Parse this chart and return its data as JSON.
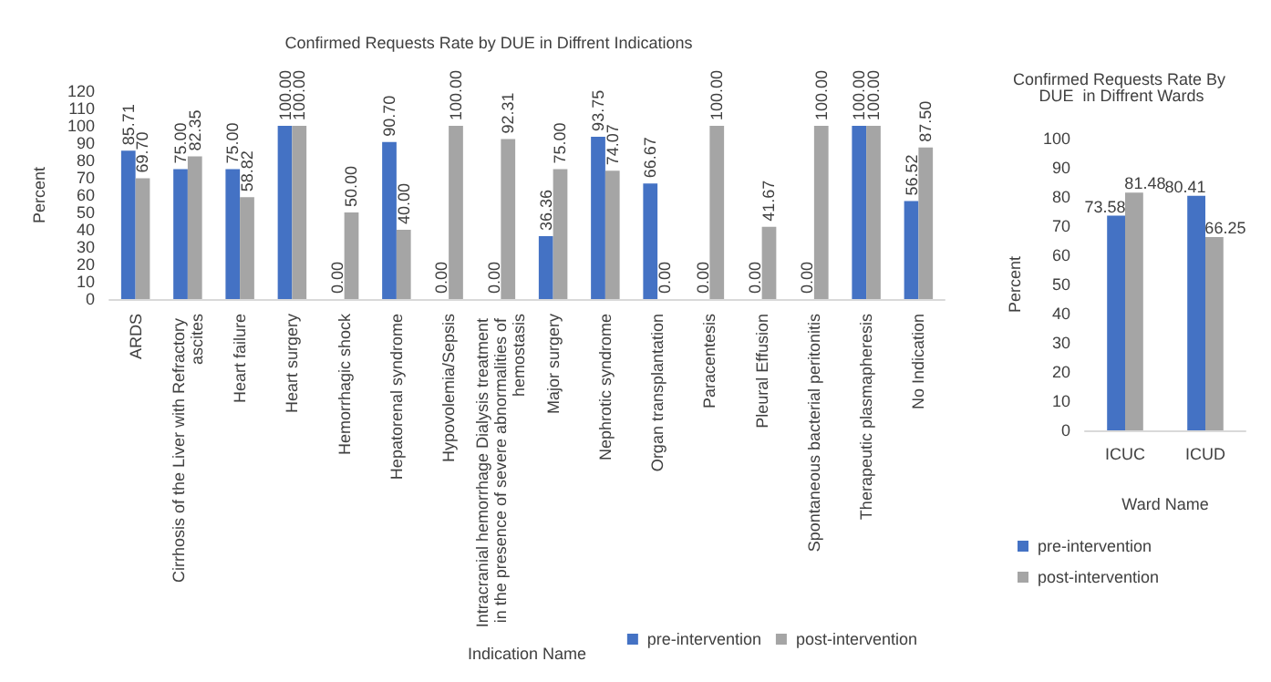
{
  "chart_data": [
    {
      "type": "bar",
      "title": "Confirmed Requests Rate by DUE in Diffrent Indications",
      "xlabel": "Indication Name",
      "ylabel": "Percent",
      "categories": [
        "ARDS",
        "Cirrhosis of the Liver with Refractory ascites",
        "Heart failure",
        "Heart surgery",
        "Hemorrhagic shock",
        "Hepatorenal syndrome",
        "Hypovolemia/Sepsis",
        "Intracranial hemorrhage Dialysis treatment in the presence of severe abnormalities of hemostasis",
        "Major surgery",
        "Nephrotic syndrome",
        "Organ transplantation",
        "Paracentesis",
        "Pleural Effusion",
        "Spontaneous bacterial peritonitis",
        "Therapeutic plasmapheresis",
        "No Indication"
      ],
      "series": [
        {
          "name": "pre-intervention",
          "color": "#4472c4",
          "values": [
            85.71,
            75.0,
            75.0,
            100.0,
            0,
            90.7,
            0,
            0,
            36.36,
            93.75,
            66.67,
            0,
            0,
            0,
            100.0,
            56.52
          ],
          "value_labels": [
            "85.71",
            "75.00",
            "75.00",
            "100.00",
            "0.00",
            "90.70",
            "0.00",
            "0.00",
            "36.36",
            "93.75",
            "66.67",
            "0.00",
            "0.00",
            "0.00",
            "100.00",
            "56.52"
          ]
        },
        {
          "name": "post-intervention",
          "color": "#a5a5a5",
          "values": [
            69.7,
            82.35,
            58.82,
            100.0,
            50.0,
            40.0,
            100.0,
            92.31,
            75.0,
            74.07,
            0,
            100.0,
            41.67,
            100.0,
            100.0,
            87.5
          ],
          "value_labels": [
            "69.70",
            "82.35",
            "58.82",
            "100.00",
            "50.00",
            "40.00",
            "100.00",
            "92.31",
            "75.00",
            "74.07",
            "0.00",
            "100.00",
            "41.67",
            "100.00",
            "100.00",
            "87.50"
          ]
        }
      ],
      "ylim": [
        0,
        120
      ],
      "yticks": [
        0,
        10,
        20,
        30,
        40,
        50,
        60,
        70,
        80,
        90,
        100,
        110,
        120
      ],
      "grid": false,
      "legend": "bottom right"
    },
    {
      "type": "bar",
      "title": "Confirmed Requests Rate By DUE  in Diffrent Wards",
      "xlabel": "Ward Name",
      "ylabel": "Percent",
      "categories": [
        "ICUC",
        "ICUD"
      ],
      "series": [
        {
          "name": "pre-intervention",
          "color": "#4472c4",
          "values": [
            73.58,
            80.41
          ],
          "value_labels": [
            "73.58",
            "80.41"
          ]
        },
        {
          "name": "post-intervention",
          "color": "#a5a5a5",
          "values": [
            81.48,
            66.25
          ],
          "value_labels": [
            "81.48",
            "66.25"
          ]
        }
      ],
      "ylim": [
        0,
        100
      ],
      "yticks": [
        0,
        10,
        20,
        30,
        40,
        50,
        60,
        70,
        80,
        90,
        100
      ],
      "grid": false,
      "legend": "bottom"
    }
  ]
}
